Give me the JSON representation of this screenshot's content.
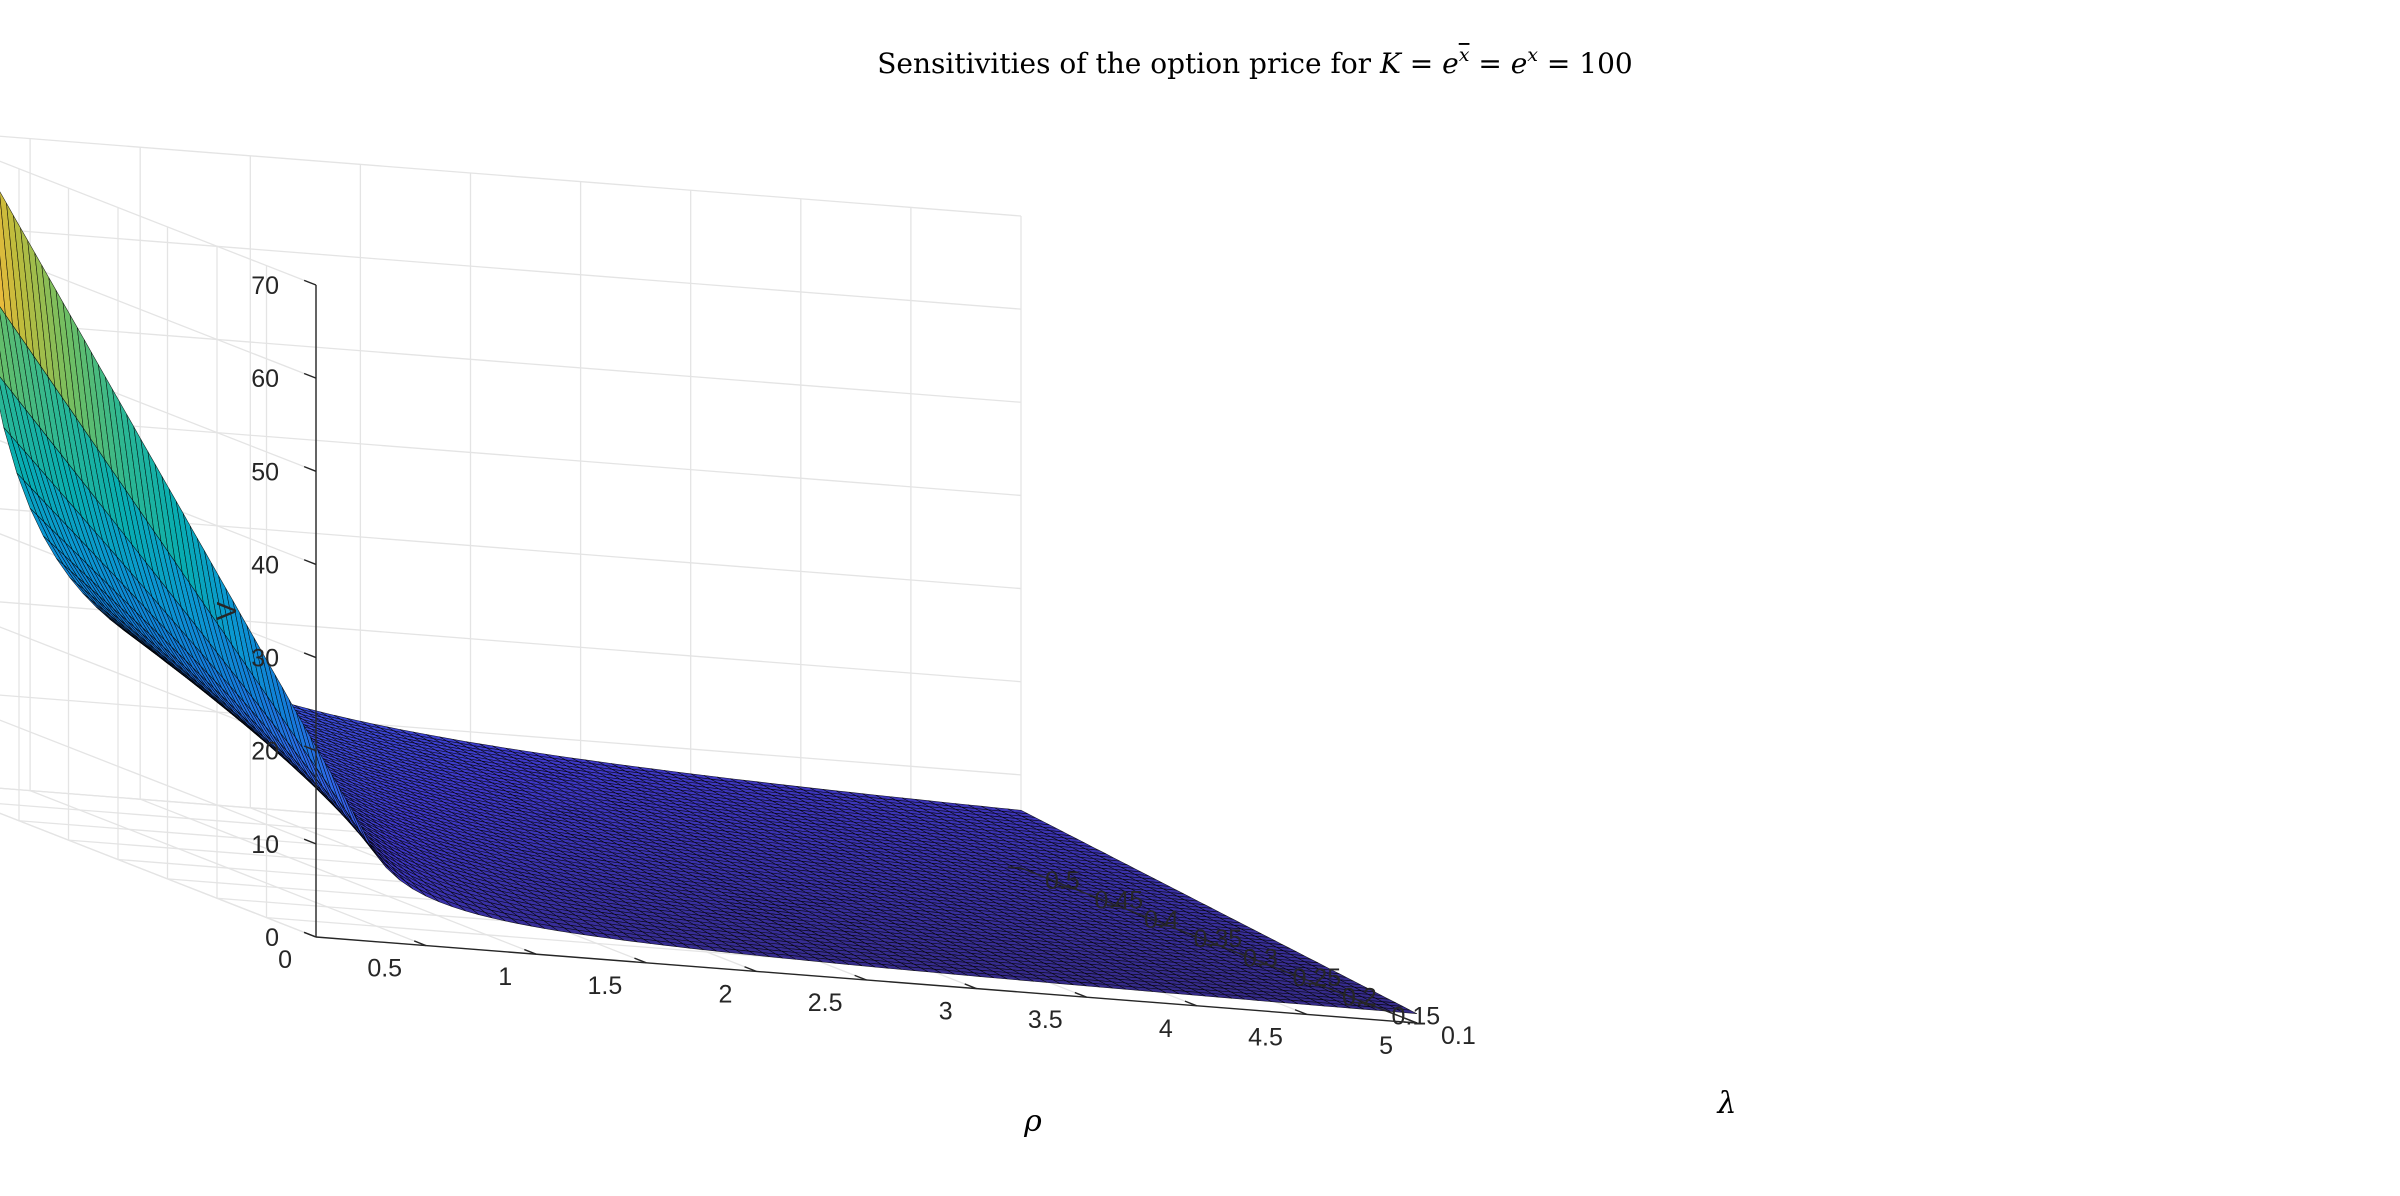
{
  "chart_data": {
    "type": "surface",
    "title": {
      "prefix": "Sensitivities of the option price for ",
      "K": "K",
      "eq": " = ",
      "e": "e",
      "xbar": "x",
      "x": "x",
      "hundred": "100"
    },
    "xlabel": "ρ",
    "ylabel": "λ",
    "zlabel": "V",
    "xlim": [
      0,
      5
    ],
    "ylim": [
      0.1,
      0.5
    ],
    "zlim": [
      0,
      70
    ],
    "xticks": [
      "0",
      "0.5",
      "1",
      "1.5",
      "2",
      "2.5",
      "3",
      "3.5",
      "4",
      "4.5",
      "5"
    ],
    "yticks": [
      "0.1",
      "0.15",
      "0.2",
      "0.25",
      "0.3",
      "0.35",
      "0.4",
      "0.45",
      "0.5"
    ],
    "zticks": [
      "0",
      "10",
      "20",
      "30",
      "40",
      "50",
      "60",
      "70"
    ],
    "grid": true,
    "colormap": "parula",
    "edge_color": "#000000",
    "rho_grid": [
      0.2,
      0.8,
      1.4,
      2.0,
      2.6,
      3.2,
      3.8,
      4.4,
      5.0
    ],
    "lambda_grid": [
      0.1,
      0.15,
      0.2,
      0.25,
      0.3,
      0.35,
      0.4,
      0.45,
      0.5
    ],
    "V_at_lambda_0_1": [
      12.5,
      7.7,
      5.1,
      3.6,
      2.6,
      1.9,
      1.4,
      1.1,
      1.0
    ],
    "V_at_rho_0_2": [
      12.5,
      19.1,
      26.0,
      33.3,
      40.6,
      48.1,
      55.5,
      63.0,
      70.5
    ],
    "V_at_rho_5": [
      1.0,
      1.4,
      2.0,
      2.6,
      3.2,
      3.9,
      4.6,
      5.4,
      6.2
    ],
    "V_at_lambda_0_5": [
      70.5,
      36.4,
      22.9,
      15.9,
      11.8,
      9.3,
      7.7,
      6.8,
      6.2
    ]
  }
}
